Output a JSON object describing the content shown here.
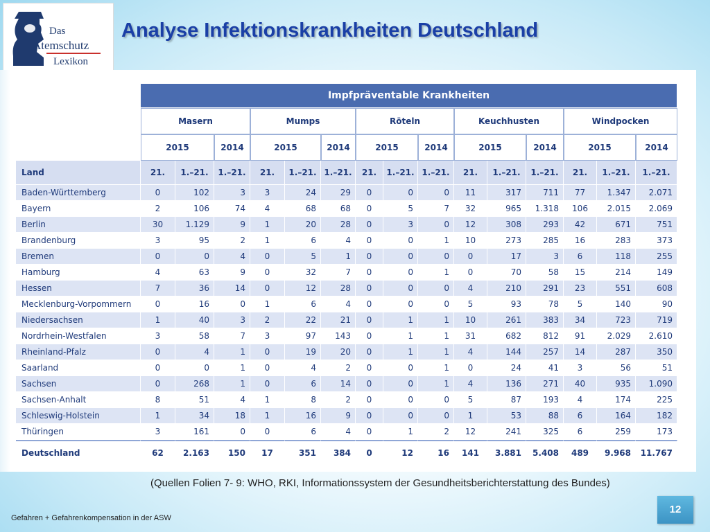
{
  "logo": {
    "line1": "Das",
    "line2": "Atemschutz",
    "line3": "Lexikon"
  },
  "title": "Analyse Infektionskrankheiten Deutschland",
  "table": {
    "main_header": "Impfpräventable Krankheiten",
    "diseases": [
      "Masern",
      "Mumps",
      "Röteln",
      "Keuchhusten",
      "Windpocken"
    ],
    "years": [
      "2015",
      "2014"
    ],
    "land_label": "Land",
    "col_labels": [
      "21.",
      "1.–21.",
      "1.–21."
    ],
    "rows": [
      {
        "land": "Baden-Württemberg",
        "values": [
          "0",
          "102",
          "3",
          "3",
          "24",
          "29",
          "0",
          "0",
          "0",
          "11",
          "317",
          "711",
          "77",
          "1.347",
          "2.071"
        ]
      },
      {
        "land": "Bayern",
        "values": [
          "2",
          "106",
          "74",
          "4",
          "68",
          "68",
          "0",
          "5",
          "7",
          "32",
          "965",
          "1.318",
          "106",
          "2.015",
          "2.069"
        ]
      },
      {
        "land": "Berlin",
        "values": [
          "30",
          "1.129",
          "9",
          "1",
          "20",
          "28",
          "0",
          "3",
          "0",
          "12",
          "308",
          "293",
          "42",
          "671",
          "751"
        ]
      },
      {
        "land": "Brandenburg",
        "values": [
          "3",
          "95",
          "2",
          "1",
          "6",
          "4",
          "0",
          "0",
          "1",
          "10",
          "273",
          "285",
          "16",
          "283",
          "373"
        ]
      },
      {
        "land": "Bremen",
        "values": [
          "0",
          "0",
          "4",
          "0",
          "5",
          "1",
          "0",
          "0",
          "0",
          "0",
          "17",
          "3",
          "6",
          "118",
          "255"
        ]
      },
      {
        "land": "Hamburg",
        "values": [
          "4",
          "63",
          "9",
          "0",
          "32",
          "7",
          "0",
          "0",
          "1",
          "0",
          "70",
          "58",
          "15",
          "214",
          "149"
        ]
      },
      {
        "land": "Hessen",
        "values": [
          "7",
          "36",
          "14",
          "0",
          "12",
          "28",
          "0",
          "0",
          "0",
          "4",
          "210",
          "291",
          "23",
          "551",
          "608"
        ]
      },
      {
        "land": "Mecklenburg-Vorpommern",
        "values": [
          "0",
          "16",
          "0",
          "1",
          "6",
          "4",
          "0",
          "0",
          "0",
          "5",
          "93",
          "78",
          "5",
          "140",
          "90"
        ]
      },
      {
        "land": "Niedersachsen",
        "values": [
          "1",
          "40",
          "3",
          "2",
          "22",
          "21",
          "0",
          "1",
          "1",
          "10",
          "261",
          "383",
          "34",
          "723",
          "719"
        ]
      },
      {
        "land": "Nordrhein-Westfalen",
        "values": [
          "3",
          "58",
          "7",
          "3",
          "97",
          "143",
          "0",
          "1",
          "1",
          "31",
          "682",
          "812",
          "91",
          "2.029",
          "2.610"
        ]
      },
      {
        "land": "Rheinland-Pfalz",
        "values": [
          "0",
          "4",
          "1",
          "0",
          "19",
          "20",
          "0",
          "1",
          "1",
          "4",
          "144",
          "257",
          "14",
          "287",
          "350"
        ]
      },
      {
        "land": "Saarland",
        "values": [
          "0",
          "0",
          "1",
          "0",
          "4",
          "2",
          "0",
          "0",
          "1",
          "0",
          "24",
          "41",
          "3",
          "56",
          "51"
        ]
      },
      {
        "land": "Sachsen",
        "values": [
          "0",
          "268",
          "1",
          "0",
          "6",
          "14",
          "0",
          "0",
          "1",
          "4",
          "136",
          "271",
          "40",
          "935",
          "1.090"
        ]
      },
      {
        "land": "Sachsen-Anhalt",
        "values": [
          "8",
          "51",
          "4",
          "1",
          "8",
          "2",
          "0",
          "0",
          "0",
          "5",
          "87",
          "193",
          "4",
          "174",
          "225"
        ]
      },
      {
        "land": "Schleswig-Holstein",
        "values": [
          "1",
          "34",
          "18",
          "1",
          "16",
          "9",
          "0",
          "0",
          "0",
          "1",
          "53",
          "88",
          "6",
          "164",
          "182"
        ]
      },
      {
        "land": "Thüringen",
        "values": [
          "3",
          "161",
          "0",
          "0",
          "6",
          "4",
          "0",
          "1",
          "2",
          "12",
          "241",
          "325",
          "6",
          "259",
          "173"
        ]
      }
    ],
    "total": {
      "land": "Deutschland",
      "values": [
        "62",
        "2.163",
        "150",
        "17",
        "351",
        "384",
        "0",
        "12",
        "16",
        "141",
        "3.881",
        "5.408",
        "489",
        "9.968",
        "11.767"
      ]
    }
  },
  "source": "(Quellen Folien 7- 9: WHO, RKI, Informationssystem der Gesundheitsberichterstattung des Bundes)",
  "footer": "Gefahren + Gefahrenkompensation in der ASW",
  "page_number": "12",
  "colors": {
    "title": "#1a3fa6",
    "header_blue": "#4a6cb0",
    "row_stripe": "#dde4f4",
    "page_badge": "#3c93c4"
  }
}
